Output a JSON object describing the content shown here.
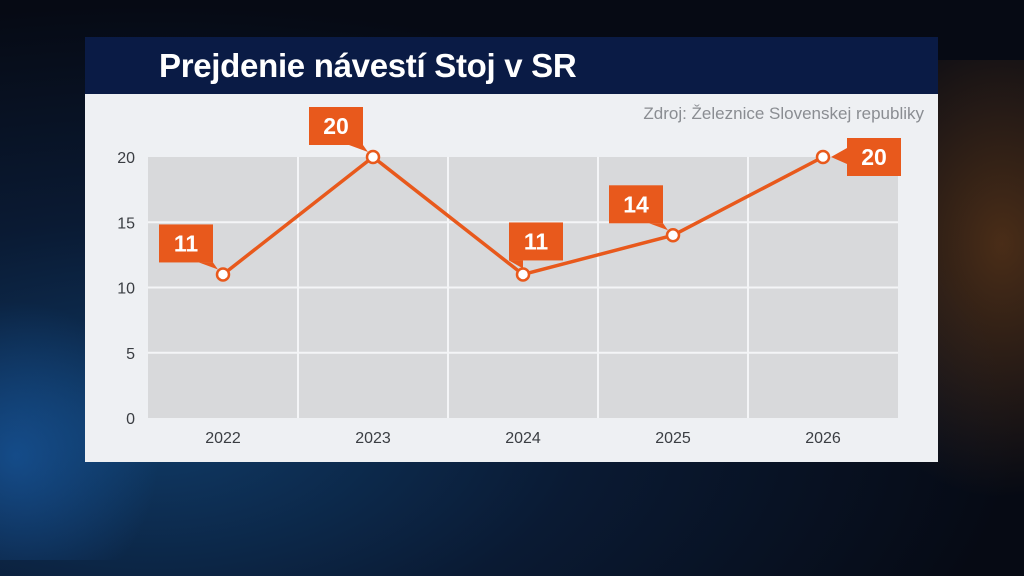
{
  "title": "Prejdenie návestí Stoj v SR",
  "source": "Zdroj: Železnice Slovenskej republiky",
  "colors": {
    "line": "#e8591c",
    "label_bg": "#e8591c",
    "plot_bg": "#d8d9db",
    "panel_bg": "#eef0f3",
    "title_bg": "#0a1b45"
  },
  "chart_data": {
    "type": "line",
    "title": "Prejdenie návestí Stoj v SR",
    "xlabel": "",
    "ylabel": "",
    "categories": [
      "2022",
      "2023",
      "2024",
      "2025",
      "2026"
    ],
    "series": [
      {
        "values": [
          11,
          20,
          11,
          14,
          20
        ]
      }
    ],
    "ylim": [
      0,
      20
    ],
    "yticks": [
      "0",
      "5",
      "10",
      "15",
      "20"
    ],
    "data_labels": [
      "11",
      "20",
      "11",
      "14",
      "20"
    ],
    "grid": true,
    "legend": "none"
  }
}
